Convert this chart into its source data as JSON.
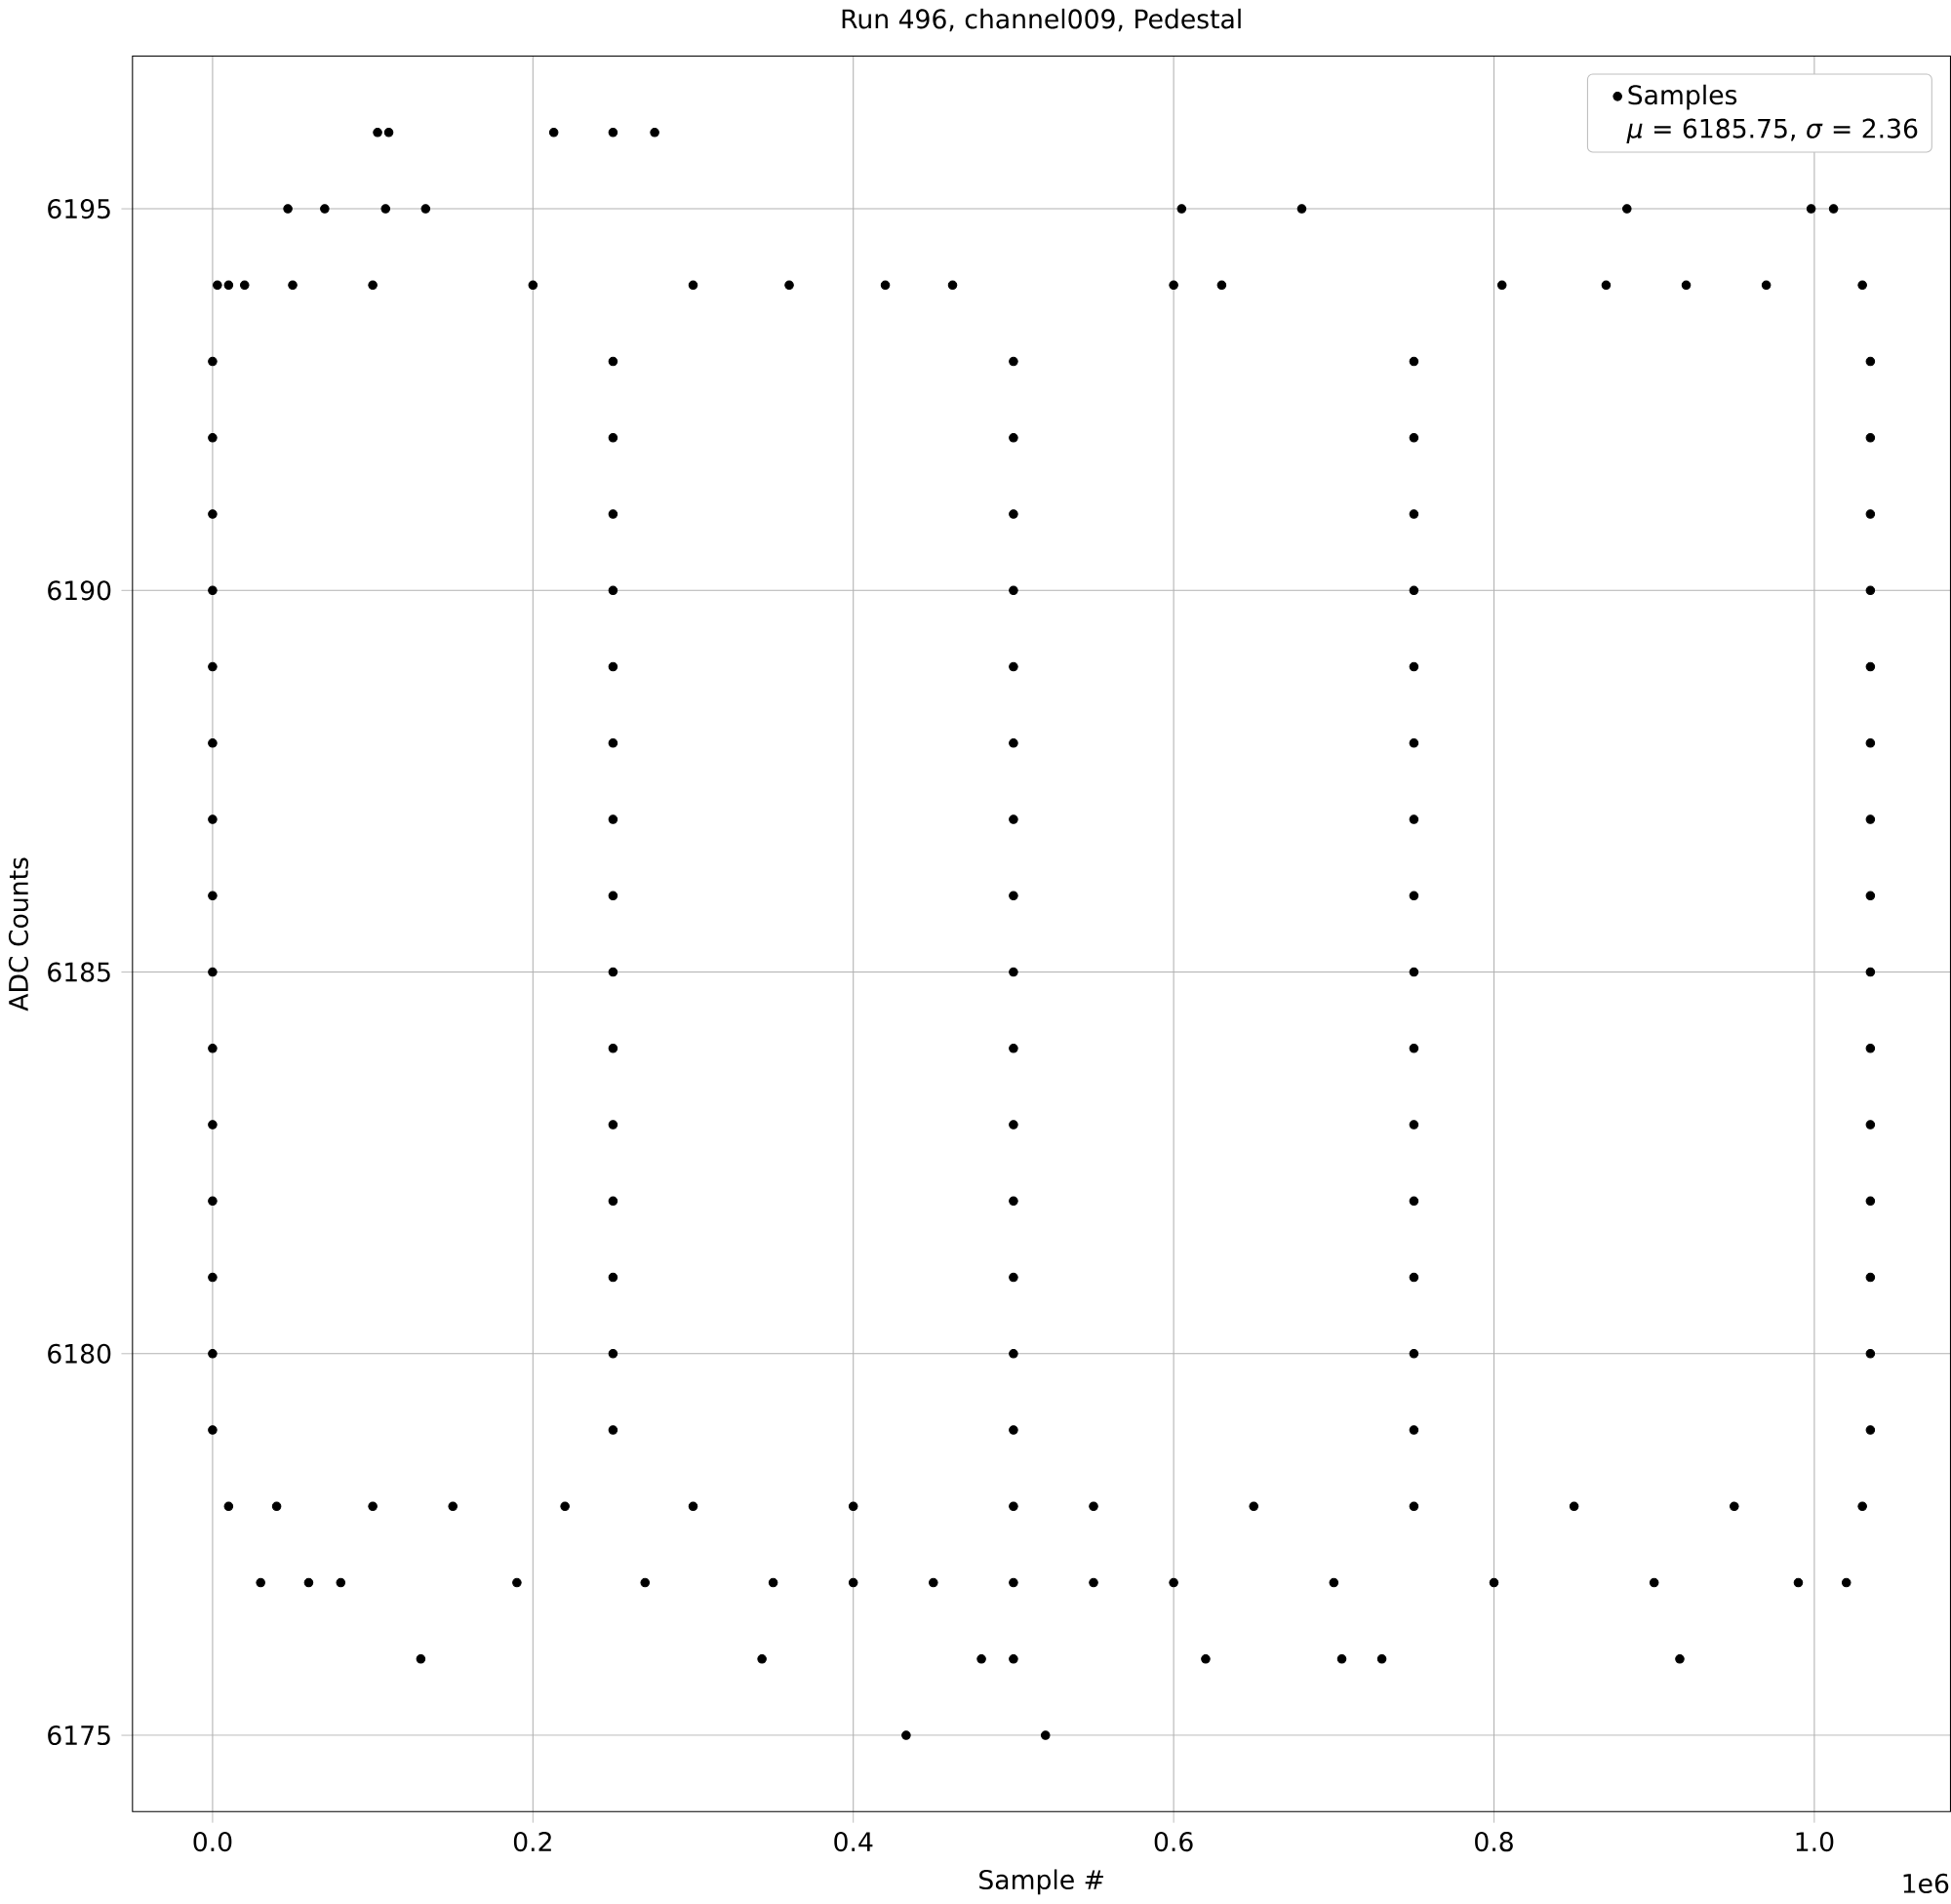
{
  "chart_data": {
    "type": "scatter",
    "title": "Run 496, channel009, Pedestal",
    "xlabel": "Sample #",
    "ylabel": "ADC Counts",
    "annotations": [
      "*μ* = 6185.75, *σ* = 2.36",
      "1e6"
    ],
    "xlim": [
      -0.05,
      1.085
    ],
    "ylim": [
      6174,
      6197
    ],
    "xticks": [
      {
        "value": 0,
        "label": "0.0"
      },
      0.2,
      0.4,
      0.6,
      0.8,
      {
        "value": 1,
        "label": "1.0"
      }
    ],
    "yticks": [
      6175,
      6180,
      6185,
      6190,
      6195
    ],
    "grid": true,
    "legend": "top right",
    "marker": "circle",
    "series": [
      {
        "name": "Samples",
        "color": "#000000",
        "x": [
          0,
          0.25,
          0.5,
          0.75,
          1.035,
          0,
          0.25,
          0.5,
          0.75,
          1.035,
          0,
          0.25,
          0.5,
          0.75,
          1.035,
          0,
          0.25,
          0.5,
          0.75,
          1.035,
          0,
          0.25,
          0.5,
          0.75,
          1.035,
          0,
          0.25,
          0.5,
          0.75,
          1.035,
          0,
          0.25,
          0.5,
          0.75,
          1.035,
          0,
          0.25,
          0.5,
          0.75,
          1.035,
          0,
          0.25,
          0.5,
          0.75,
          1.035,
          0,
          0.25,
          0.5,
          0.75,
          1.035,
          0,
          0.25,
          0.5,
          0.75,
          1.035,
          0,
          0.25,
          0.5,
          0.75,
          1.035,
          0,
          0.25,
          0.5,
          0.75,
          1.035,
          0,
          0.25,
          0.5,
          0.75,
          1.035,
          0,
          0.25,
          0.5,
          0.75,
          1.035,
          0.103,
          0.11,
          0.213,
          0.25,
          0.276,
          0.047,
          0.07,
          0.108,
          0.133,
          0.605,
          0.68,
          0.883,
          0.998,
          1.012,
          0.13,
          0.343,
          0.48,
          0.5,
          0.62,
          0.705,
          0.73,
          0.916,
          0.433,
          0.52,
          0.003,
          0.01,
          0.02,
          0.05,
          0.1,
          0.2,
          0.3,
          0.36,
          0.42,
          0.462,
          0.6,
          0.63,
          0.805,
          0.87,
          0.92,
          0.97,
          1.03,
          0.03,
          0.06,
          0.08,
          0.19,
          0.27,
          0.35,
          0.4,
          0.45,
          0.5,
          0.55,
          0.6,
          0.7,
          0.8,
          0.9,
          0.99,
          1.02,
          0.01,
          0.04,
          0.1,
          0.15,
          0.22,
          0.3,
          0.4,
          0.5,
          0.55,
          0.65,
          0.75,
          0.85,
          0.95,
          1.03
        ],
        "values": [
          6179,
          6179,
          6179,
          6179,
          6179,
          6180,
          6180,
          6180,
          6180,
          6180,
          6181,
          6181,
          6181,
          6181,
          6181,
          6182,
          6182,
          6182,
          6182,
          6182,
          6183,
          6183,
          6183,
          6183,
          6183,
          6184,
          6184,
          6184,
          6184,
          6184,
          6185,
          6185,
          6185,
          6185,
          6185,
          6186,
          6186,
          6186,
          6186,
          6186,
          6187,
          6187,
          6187,
          6187,
          6187,
          6188,
          6188,
          6188,
          6188,
          6188,
          6189,
          6189,
          6189,
          6189,
          6189,
          6190,
          6190,
          6190,
          6190,
          6190,
          6191,
          6191,
          6191,
          6191,
          6191,
          6192,
          6192,
          6192,
          6192,
          6192,
          6193,
          6193,
          6193,
          6193,
          6193,
          6196,
          6196,
          6196,
          6196,
          6196,
          6195,
          6195,
          6195,
          6195,
          6195,
          6195,
          6195,
          6195,
          6195,
          6176,
          6176,
          6176,
          6176,
          6176,
          6176,
          6176,
          6176,
          6175,
          6175,
          6194,
          6194,
          6194,
          6194,
          6194,
          6194,
          6194,
          6194,
          6194,
          6194,
          6194,
          6194,
          6194,
          6194,
          6194,
          6194,
          6194,
          6177,
          6177,
          6177,
          6177,
          6177,
          6177,
          6177,
          6177,
          6177,
          6177,
          6177,
          6177,
          6177,
          6177,
          6177,
          6177,
          6178,
          6178,
          6178,
          6178,
          6178,
          6178,
          6178,
          6178,
          6178,
          6178,
          6178,
          6178,
          6178,
          6178
        ]
      }
    ]
  }
}
